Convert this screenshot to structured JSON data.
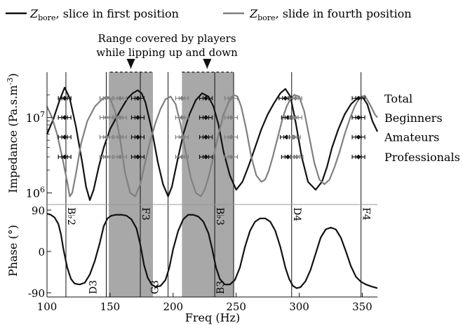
{
  "chart_data": {
    "type": "line",
    "legend": {
      "placement": "top",
      "entries": [
        {
          "symbol": "Z",
          "subscript": "bore",
          "rest": ", slice in first position",
          "color": "#111111"
        },
        {
          "symbol": "Z",
          "subscript": "bore",
          "rest": ", slide in fourth position",
          "color": "#808080"
        }
      ]
    },
    "annotation": {
      "line1": "Range covered by players",
      "line2": "while lipping up and down"
    },
    "xlabel": "Freq (Hz)",
    "xlim": [
      100,
      362
    ],
    "x_ticks": [
      100,
      150,
      200,
      250,
      300,
      350
    ],
    "x_tick_labels": [
      "100",
      "150",
      "200",
      "250",
      "300",
      "350"
    ],
    "shaded_ranges": [
      [
        149,
        184
      ],
      [
        207,
        248
      ]
    ],
    "arrow_ranges": [
      [
        150,
        183
      ],
      [
        207,
        247
      ]
    ],
    "impedance": {
      "ylabel": "Impedance (Pa.s.m⁻³)",
      "ylabel_main": "Impedance (Pa.s.m",
      "ylabel_sup": "-3",
      "ylabel_close": ")",
      "yscale": "log",
      "ylim": [
        700000,
        40000000
      ],
      "y_ticks": [
        1000000,
        10000000
      ],
      "y_tick_labels": [
        {
          "base": "10",
          "exp": "6"
        },
        {
          "base": "10",
          "exp": "7"
        }
      ],
      "series": [
        {
          "color": "#111111",
          "x": [
            100,
            105,
            110,
            114,
            118,
            123,
            128,
            131,
            134,
            137,
            141,
            145,
            150,
            155,
            160,
            164,
            168,
            172,
            175,
            178,
            183,
            188,
            192,
            196,
            199,
            203,
            208,
            213,
            218,
            223,
            228,
            232,
            236,
            240,
            245,
            250,
            255,
            260,
            265,
            270,
            275,
            280,
            285,
            289,
            293,
            297,
            302,
            307,
            313,
            318,
            322,
            326,
            331,
            336,
            341,
            346,
            350,
            354,
            358,
            362
          ],
          "y": [
            6000000,
            9500000,
            17000000,
            25000000,
            18000000,
            7500000,
            2500000,
            1200000,
            800000,
            1100000,
            2200000,
            4000000,
            7000000,
            10000000,
            14000000,
            18000000,
            21000000,
            23000000,
            21000000,
            16000000,
            7000000,
            2500000,
            1300000,
            900000,
            1200000,
            2500000,
            6000000,
            11000000,
            17000000,
            21000000,
            19000000,
            14000000,
            8000000,
            3500000,
            1700000,
            1100000,
            1400000,
            2300000,
            4000000,
            7000000,
            11000000,
            15500000,
            21000000,
            24000000,
            19000000,
            9000000,
            3000000,
            1400000,
            1100000,
            1400000,
            2200000,
            4000000,
            7000000,
            11000000,
            15000000,
            18000000,
            19000000,
            15000000,
            9000000,
            6500000
          ]
        },
        {
          "color": "#808080",
          "x": [
            100,
            104,
            108,
            112,
            116,
            118,
            120,
            123,
            127,
            132,
            138,
            143,
            147,
            150,
            154,
            158,
            162,
            166,
            170,
            174,
            178,
            182,
            186,
            190,
            194,
            198,
            202,
            206,
            210,
            214,
            218,
            222,
            225,
            228,
            232,
            236,
            240,
            244,
            248,
            251,
            254,
            258,
            262,
            266,
            270,
            273,
            276,
            279,
            283,
            287,
            290,
            293,
            296,
            300,
            304,
            308,
            312,
            316,
            320,
            324,
            328,
            332,
            336,
            340,
            344,
            348,
            352,
            356,
            360,
            362
          ],
          "y": [
            14000000,
            10000000,
            6000000,
            3000000,
            1400000,
            900000,
            1000000,
            1800000,
            4500000,
            9000000,
            14000000,
            17000000,
            19000000,
            18000000,
            12000000,
            5000000,
            1800000,
            1000000,
            900000,
            1300000,
            2600000,
            5000000,
            8500000,
            13000000,
            17500000,
            19000000,
            15000000,
            8000000,
            3500000,
            1600000,
            1000000,
            900000,
            1100000,
            1600000,
            3000000,
            6000000,
            11000000,
            16000000,
            20000000,
            19000000,
            14000000,
            7000000,
            3000000,
            1700000,
            1400000,
            1500000,
            2000000,
            3000000,
            5500000,
            10000000,
            14000000,
            17500000,
            20000000,
            19000000,
            12000000,
            5500000,
            2500000,
            1500000,
            1300000,
            1500000,
            2200000,
            3500000,
            6000000,
            9500000,
            14000000,
            18500000,
            19500000,
            15000000,
            11000000,
            10000000
          ]
        }
      ],
      "row_labels": [
        "Total",
        "Beginners",
        "Amateurs",
        "Professionals"
      ],
      "row_levels": [
        18000000,
        10000000,
        5500000,
        3000000
      ],
      "marker_groups": [
        {
          "row": 0,
          "x": 114,
          "color": "#111111"
        },
        {
          "row": 1,
          "x": 114,
          "color": "#111111"
        },
        {
          "row": 2,
          "x": 114,
          "color": "#111111"
        },
        {
          "row": 3,
          "x": 114,
          "color": "#111111"
        },
        {
          "row": 0,
          "x": 147,
          "color": "#808080"
        },
        {
          "row": 1,
          "x": 147,
          "color": "#808080"
        },
        {
          "row": 2,
          "x": 147,
          "color": "#808080"
        },
        {
          "row": 3,
          "x": 147,
          "color": "#808080"
        },
        {
          "row": 0,
          "x": 158,
          "color": "#808080"
        },
        {
          "row": 1,
          "x": 158,
          "color": "#808080"
        },
        {
          "row": 2,
          "x": 158,
          "color": "#808080"
        },
        {
          "row": 3,
          "x": 158,
          "color": "#808080"
        },
        {
          "row": 0,
          "x": 172,
          "color": "#111111"
        },
        {
          "row": 1,
          "x": 172,
          "color": "#111111"
        },
        {
          "row": 2,
          "x": 172,
          "color": "#111111"
        },
        {
          "row": 3,
          "x": 172,
          "color": "#111111"
        },
        {
          "row": 0,
          "x": 207,
          "color": "#808080"
        },
        {
          "row": 1,
          "x": 207,
          "color": "#808080"
        },
        {
          "row": 2,
          "x": 207,
          "color": "#808080"
        },
        {
          "row": 3,
          "x": 207,
          "color": "#808080"
        },
        {
          "row": 0,
          "x": 226,
          "color": "#111111"
        },
        {
          "row": 1,
          "x": 226,
          "color": "#111111"
        },
        {
          "row": 2,
          "x": 226,
          "color": "#111111"
        },
        {
          "row": 3,
          "x": 226,
          "color": "#111111"
        },
        {
          "row": 0,
          "x": 246,
          "color": "#808080"
        },
        {
          "row": 1,
          "x": 246,
          "color": "#808080"
        },
        {
          "row": 2,
          "x": 246,
          "color": "#808080"
        },
        {
          "row": 3,
          "x": 246,
          "color": "#808080"
        },
        {
          "row": 0,
          "x": 289,
          "color": "#111111"
        },
        {
          "row": 1,
          "x": 291,
          "color": "#111111"
        },
        {
          "row": 2,
          "x": 290,
          "color": "#111111"
        },
        {
          "row": 3,
          "x": 291,
          "color": "#111111"
        },
        {
          "row": 0,
          "x": 297,
          "color": "#808080"
        },
        {
          "row": 1,
          "x": 297,
          "color": "#808080"
        },
        {
          "row": 2,
          "x": 296,
          "color": "#808080"
        },
        {
          "row": 3,
          "x": 298,
          "color": "#808080"
        },
        {
          "row": 0,
          "x": 347,
          "color": "#111111"
        },
        {
          "row": 1,
          "x": 347,
          "color": "#111111"
        },
        {
          "row": 2,
          "x": 347,
          "color": "#111111"
        },
        {
          "row": 3,
          "x": 347,
          "color": "#111111"
        }
      ]
    },
    "phase": {
      "ylabel": "Phase (°)",
      "ylim": [
        -90,
        90
      ],
      "y_ticks": [
        -90,
        0,
        90
      ],
      "y_tick_labels": [
        "-90",
        "0",
        "90"
      ],
      "series": [
        {
          "color": "#111111",
          "x": [
            100,
            103,
            106,
            109,
            111,
            113,
            116,
            119,
            122,
            126,
            130,
            134,
            138,
            142,
            145,
            148,
            151,
            155,
            159,
            163,
            167,
            171,
            174,
            177,
            180,
            183,
            186,
            190,
            194,
            197,
            200,
            204,
            208,
            212,
            216,
            220,
            224,
            228,
            231,
            234,
            237,
            241,
            245,
            249,
            253,
            257,
            261,
            265,
            269,
            273,
            277,
            281,
            285,
            289,
            292,
            295,
            298,
            301,
            305,
            309,
            313,
            317,
            321,
            325,
            329,
            333,
            337,
            341,
            345,
            349,
            353,
            357,
            362
          ],
          "y": [
            82,
            80,
            74,
            60,
            38,
            5,
            -35,
            -60,
            -70,
            -72,
            -68,
            -50,
            -20,
            20,
            55,
            72,
            78,
            80,
            80,
            78,
            70,
            50,
            15,
            -30,
            -58,
            -72,
            -77,
            -75,
            -62,
            -35,
            5,
            45,
            70,
            80,
            80,
            76,
            65,
            40,
            5,
            -35,
            -60,
            -72,
            -72,
            -62,
            -35,
            10,
            45,
            65,
            72,
            72,
            65,
            45,
            10,
            -35,
            -60,
            -75,
            -80,
            -78,
            -65,
            -40,
            -5,
            30,
            48,
            52,
            48,
            30,
            0,
            -32,
            -55,
            -66,
            -72,
            -76,
            -80
          ]
        }
      ],
      "note_lines": [
        {
          "x": 115,
          "label": "B♭2",
          "pos": "top"
        },
        {
          "x": 147,
          "label": "D3",
          "pos": "bottom"
        },
        {
          "x": 174,
          "label": "F3",
          "pos": "top"
        },
        {
          "x": 196,
          "label": "G3",
          "pos": "bottom"
        },
        {
          "x": 233,
          "label": "B♭3",
          "pos": "top"
        },
        {
          "x": 248,
          "label": "B3",
          "pos": "bottom"
        },
        {
          "x": 294,
          "label": "D4",
          "pos": "top"
        },
        {
          "x": 349,
          "label": "F4",
          "pos": "top"
        }
      ]
    }
  }
}
